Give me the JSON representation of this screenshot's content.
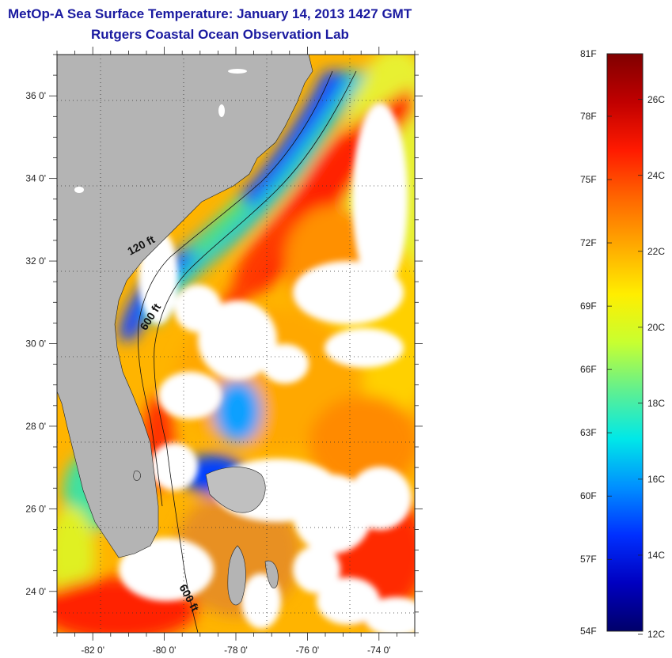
{
  "header": {
    "title": "MetOp-A Sea Surface Temperature:  January 14, 2013 1427 GMT",
    "subtitle": "Rutgers Coastal Ocean Observation Lab"
  },
  "map": {
    "lon_range": [
      -83,
      -73
    ],
    "lat_range": [
      23,
      37
    ],
    "lat_ticks": [
      {
        "value": 36,
        "label": "36 0'"
      },
      {
        "value": 34,
        "label": "34 0'"
      },
      {
        "value": 32,
        "label": "32 0'"
      },
      {
        "value": 30,
        "label": "30 0'"
      },
      {
        "value": 28,
        "label": "28 0'"
      },
      {
        "value": 26,
        "label": "26 0'"
      },
      {
        "value": 24,
        "label": "24 0'"
      }
    ],
    "lon_ticks": [
      {
        "value": -82,
        "label": "-82 0'"
      },
      {
        "value": -80,
        "label": "-80 0'"
      },
      {
        "value": -78,
        "label": "-78 0'"
      },
      {
        "value": -76,
        "label": "-76 0'"
      },
      {
        "value": -74,
        "label": "-74 0'"
      }
    ],
    "isobaths": [
      {
        "label": "120 ft",
        "lon": -80.6,
        "lat": 32.3
      },
      {
        "label": "600 ft",
        "lon": -80.3,
        "lat": 30.6
      },
      {
        "label": "600 ft",
        "lon": -79.4,
        "lat": 23.8
      }
    ],
    "colors": {
      "land": "#b4b4b4",
      "cloud": "#ffffff",
      "grid": "#333333"
    }
  },
  "colorbar": {
    "temp_range_c": [
      12,
      27.2
    ],
    "fahrenheit_labels": [
      "81F",
      "78F",
      "75F",
      "72F",
      "69F",
      "66F",
      "63F",
      "60F",
      "57F",
      "54F"
    ],
    "celsius_labels": [
      "26C",
      "24C",
      "22C",
      "20C",
      "18C",
      "16C",
      "14C",
      "12C"
    ],
    "stops": [
      "#800000",
      "#c00000",
      "#ff1a00",
      "#ff6600",
      "#ffaa00",
      "#ffee00",
      "#c8ff30",
      "#60f090",
      "#00e8e8",
      "#0090ff",
      "#0030ff",
      "#0000c0",
      "#00006a"
    ]
  }
}
